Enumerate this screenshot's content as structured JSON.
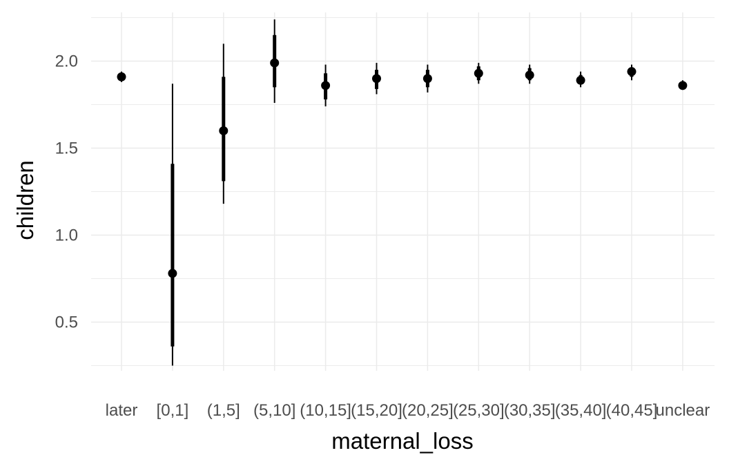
{
  "chart_data": {
    "type": "pointrange",
    "title": "",
    "xlabel": "maternal_loss",
    "ylabel": "children",
    "categories": [
      "later",
      "[0,1]",
      "(1,5]",
      "(5,10]",
      "(10,15]",
      "(15,20]",
      "(20,25]",
      "(25,30]",
      "(30,35]",
      "(35,40]",
      "(40,45]",
      "unclear"
    ],
    "y_ticks": [
      0.5,
      1.0,
      1.5,
      2.0
    ],
    "y_tick_labels": [
      "0.5",
      "1.0",
      "1.5",
      "2.0"
    ],
    "ylim": [
      0.22,
      2.28
    ],
    "grid": true,
    "points": [
      {
        "x": "later",
        "estimate": 1.91,
        "inner": [
          1.89,
          1.93
        ],
        "outer": [
          1.88,
          1.94
        ]
      },
      {
        "x": "[0,1]",
        "estimate": 0.78,
        "inner": [
          0.36,
          1.41
        ],
        "outer": [
          0.25,
          1.87
        ]
      },
      {
        "x": "(1,5]",
        "estimate": 1.6,
        "inner": [
          1.31,
          1.91
        ],
        "outer": [
          1.18,
          2.1
        ]
      },
      {
        "x": "(5,10]",
        "estimate": 1.99,
        "inner": [
          1.85,
          2.15
        ],
        "outer": [
          1.76,
          2.24
        ]
      },
      {
        "x": "(10,15]",
        "estimate": 1.86,
        "inner": [
          1.78,
          1.93
        ],
        "outer": [
          1.74,
          1.98
        ]
      },
      {
        "x": "(15,20]",
        "estimate": 1.9,
        "inner": [
          1.84,
          1.95
        ],
        "outer": [
          1.81,
          1.99
        ]
      },
      {
        "x": "(20,25]",
        "estimate": 1.9,
        "inner": [
          1.85,
          1.95
        ],
        "outer": [
          1.82,
          1.98
        ]
      },
      {
        "x": "(25,30]",
        "estimate": 1.93,
        "inner": [
          1.89,
          1.97
        ],
        "outer": [
          1.87,
          1.99
        ]
      },
      {
        "x": "(30,35]",
        "estimate": 1.92,
        "inner": [
          1.89,
          1.96
        ],
        "outer": [
          1.87,
          1.98
        ]
      },
      {
        "x": "(35,40]",
        "estimate": 1.89,
        "inner": [
          1.87,
          1.92
        ],
        "outer": [
          1.85,
          1.94
        ]
      },
      {
        "x": "(40,45]",
        "estimate": 1.94,
        "inner": [
          1.91,
          1.96
        ],
        "outer": [
          1.89,
          1.98
        ]
      },
      {
        "x": "unclear",
        "estimate": 1.86,
        "inner": [
          1.85,
          1.88
        ],
        "outer": [
          1.84,
          1.89
        ]
      }
    ]
  },
  "colors": {
    "grid": "#ebebeb",
    "mark": "#000000"
  }
}
